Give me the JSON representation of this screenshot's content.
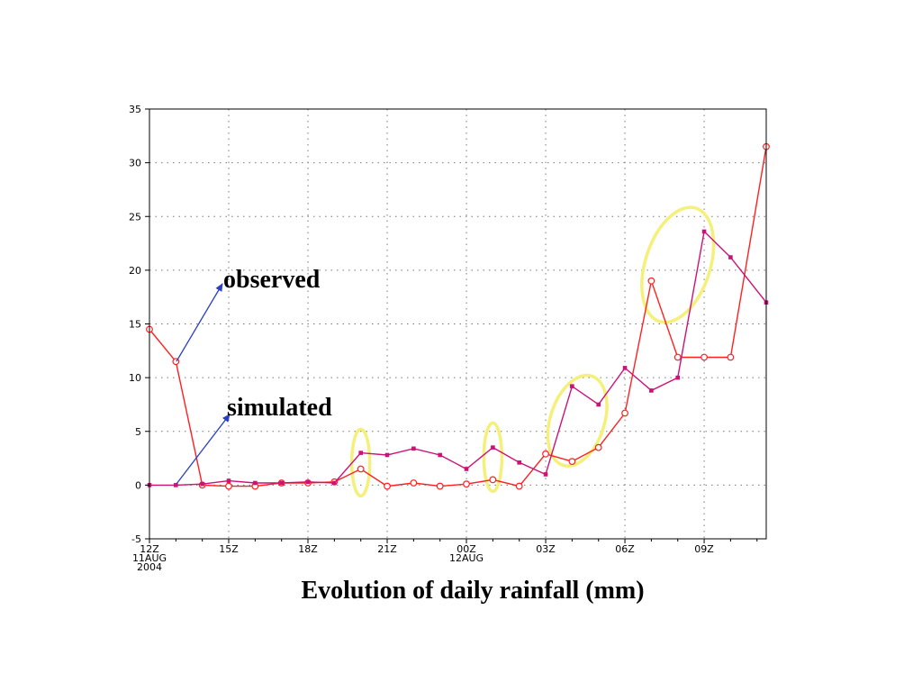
{
  "chart_data": {
    "type": "line",
    "ylim": [
      -5,
      35
    ],
    "y_ticks": [
      -5,
      0,
      5,
      10,
      15,
      20,
      25,
      30,
      35
    ],
    "x_ticks": [
      {
        "x": 0,
        "lines": [
          "12Z",
          "11AUG",
          "2004"
        ]
      },
      {
        "x": 3,
        "lines": [
          "15Z"
        ]
      },
      {
        "x": 6,
        "lines": [
          "18Z"
        ]
      },
      {
        "x": 9,
        "lines": [
          "21Z"
        ]
      },
      {
        "x": 12,
        "lines": [
          "00Z",
          "12AUG"
        ]
      },
      {
        "x": 15,
        "lines": [
          "03Z"
        ]
      },
      {
        "x": 18,
        "lines": [
          "06Z"
        ]
      },
      {
        "x": 21,
        "lines": [
          "09Z"
        ]
      }
    ],
    "xlim": [
      0,
      23.35
    ],
    "grid": true,
    "series": [
      {
        "name": "observed",
        "color": "#ff2020",
        "marker": "open-circle",
        "x": [
          0,
          1,
          2,
          3,
          4,
          5,
          6,
          7,
          8,
          9,
          10,
          11,
          12,
          13,
          14,
          15,
          16,
          17,
          18,
          19,
          20,
          21,
          22,
          23.35
        ],
        "values": [
          14.5,
          11.5,
          0,
          -0.1,
          -0.1,
          0.2,
          0.2,
          0.3,
          1.5,
          -0.1,
          0.2,
          -0.1,
          0.1,
          0.5,
          -0.1,
          2.9,
          2.2,
          3.5,
          6.7,
          19,
          11.9,
          11.9,
          11.9,
          31.5
        ]
      },
      {
        "name": "simulated",
        "color": "#cc1177",
        "marker": "filled-dot",
        "x": [
          0,
          1,
          2,
          3,
          4,
          5,
          6,
          7,
          8,
          9,
          10,
          11,
          12,
          13,
          14,
          15,
          16,
          17,
          18,
          19,
          20,
          21,
          22,
          23.35
        ],
        "values": [
          0,
          0,
          0.1,
          0.4,
          0.2,
          0.2,
          0.3,
          0.2,
          3,
          2.8,
          3.4,
          2.8,
          1.5,
          3.5,
          2.1,
          1,
          9.2,
          7.5,
          10.9,
          8.8,
          10,
          23.6,
          21.2,
          17
        ]
      }
    ],
    "annotations": [
      {
        "text": "observed"
      },
      {
        "text": "simulated"
      }
    ],
    "highlights": [
      {
        "cx": 8,
        "cy": 2.1
      },
      {
        "cx": 13,
        "cy": 2.6
      },
      {
        "cx": 16.2,
        "cy": 6
      },
      {
        "cx": 20.0,
        "cy": 20.5
      }
    ]
  },
  "caption": "Evolution of daily rainfall (mm)",
  "colors": {
    "highlight": "#f5f07a",
    "annotation_arrow": "#2b3fc2",
    "axis": "#000000",
    "grid": "#777777"
  }
}
